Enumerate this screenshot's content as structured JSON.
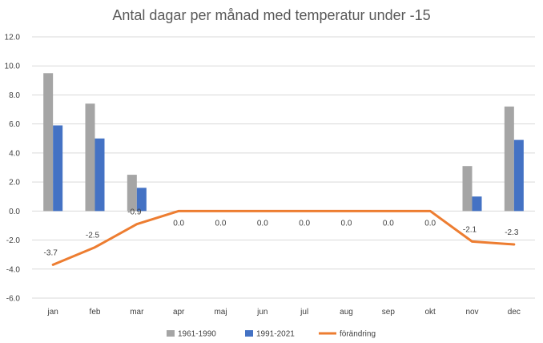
{
  "chart_data": {
    "type": "bar",
    "title": "Antal dagar per månad med temperatur under -15",
    "categories": [
      "jan",
      "feb",
      "mar",
      "apr",
      "maj",
      "jun",
      "jul",
      "aug",
      "sep",
      "okt",
      "nov",
      "dec"
    ],
    "ylim": [
      -6,
      12
    ],
    "yticks": [
      "12.0",
      "10.0",
      "8.0",
      "6.0",
      "4.0",
      "2.0",
      "0.0",
      "-2.0",
      "-4.0",
      "-6.0"
    ],
    "ytick_values": [
      12,
      10,
      8,
      6,
      4,
      2,
      0,
      -2,
      -4,
      -6
    ],
    "grid": true,
    "legend_position": "bottom",
    "series": [
      {
        "name": "1961-1990",
        "type": "bar",
        "color": "#a5a5a5",
        "values": [
          9.5,
          7.4,
          2.5,
          0,
          0,
          0,
          0,
          0,
          0,
          0,
          3.1,
          7.2
        ]
      },
      {
        "name": "1991-2021",
        "type": "bar",
        "color": "#4472c4",
        "values": [
          5.9,
          5.0,
          1.6,
          0,
          0,
          0,
          0,
          0,
          0,
          0,
          1.0,
          4.9
        ]
      },
      {
        "name": "förändring",
        "type": "line",
        "color": "#ed7d31",
        "values": [
          -3.7,
          -2.5,
          -0.9,
          0.0,
          0.0,
          0.0,
          0.0,
          0.0,
          0.0,
          0.0,
          -2.1,
          -2.3
        ],
        "labels": [
          "-3.7",
          "-2.5",
          "-0.9",
          "0.0",
          "0.0",
          "0.0",
          "0.0",
          "0.0",
          "0.0",
          "0.0",
          "-2.1",
          "-2.3"
        ]
      }
    ]
  }
}
